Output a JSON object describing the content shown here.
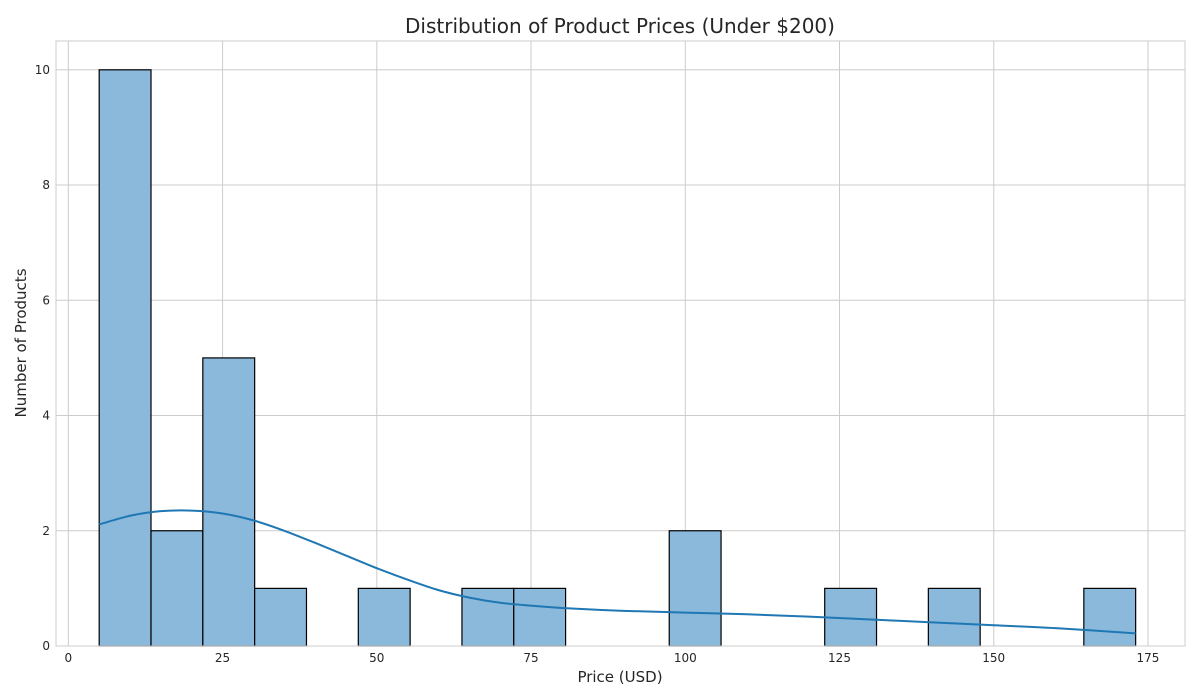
{
  "chart_data": {
    "type": "bar",
    "title": "Distribution of Product Prices (Under $200)",
    "xlabel": "Price (USD)",
    "ylabel": "Number of Products",
    "xlim": [
      -2,
      181
    ],
    "ylim": [
      0,
      10.5
    ],
    "xticks": [
      0,
      25,
      50,
      75,
      100,
      125,
      150,
      175
    ],
    "yticks": [
      0,
      2,
      4,
      6,
      8,
      10
    ],
    "grid": true,
    "bin_width": 8.4,
    "bins": [
      {
        "start": 5.0,
        "end": 13.4,
        "count": 10
      },
      {
        "start": 13.4,
        "end": 21.8,
        "count": 2
      },
      {
        "start": 21.8,
        "end": 30.2,
        "count": 5
      },
      {
        "start": 30.2,
        "end": 38.6,
        "count": 1
      },
      {
        "start": 38.6,
        "end": 47.0,
        "count": 0
      },
      {
        "start": 47.0,
        "end": 55.4,
        "count": 1
      },
      {
        "start": 55.4,
        "end": 63.8,
        "count": 0
      },
      {
        "start": 63.8,
        "end": 72.2,
        "count": 1
      },
      {
        "start": 72.2,
        "end": 80.6,
        "count": 1
      },
      {
        "start": 80.6,
        "end": 89.0,
        "count": 0
      },
      {
        "start": 89.0,
        "end": 97.4,
        "count": 0
      },
      {
        "start": 97.4,
        "end": 105.8,
        "count": 2
      },
      {
        "start": 105.8,
        "end": 114.2,
        "count": 0
      },
      {
        "start": 114.2,
        "end": 122.6,
        "count": 0
      },
      {
        "start": 122.6,
        "end": 131.0,
        "count": 1
      },
      {
        "start": 131.0,
        "end": 139.4,
        "count": 0
      },
      {
        "start": 139.4,
        "end": 147.8,
        "count": 1
      },
      {
        "start": 147.8,
        "end": 156.2,
        "count": 0
      },
      {
        "start": 156.2,
        "end": 164.6,
        "count": 0
      },
      {
        "start": 164.6,
        "end": 173.0,
        "count": 1
      }
    ],
    "kde": {
      "x": [
        5,
        10,
        15,
        20,
        25,
        30,
        35,
        40,
        45,
        50,
        55,
        60,
        65,
        70,
        75,
        80,
        90,
        100,
        110,
        120,
        130,
        140,
        150,
        160,
        173
      ],
      "y": [
        2.11,
        2.26,
        2.34,
        2.35,
        2.3,
        2.18,
        2.0,
        1.79,
        1.57,
        1.35,
        1.15,
        0.97,
        0.84,
        0.75,
        0.7,
        0.66,
        0.61,
        0.58,
        0.55,
        0.51,
        0.46,
        0.41,
        0.36,
        0.31,
        0.22
      ]
    },
    "colors": {
      "bar_fill": "#8ab9db",
      "bar_edge": "#000000",
      "kde_line": "#1f77b4",
      "grid": "#cccccc"
    }
  }
}
